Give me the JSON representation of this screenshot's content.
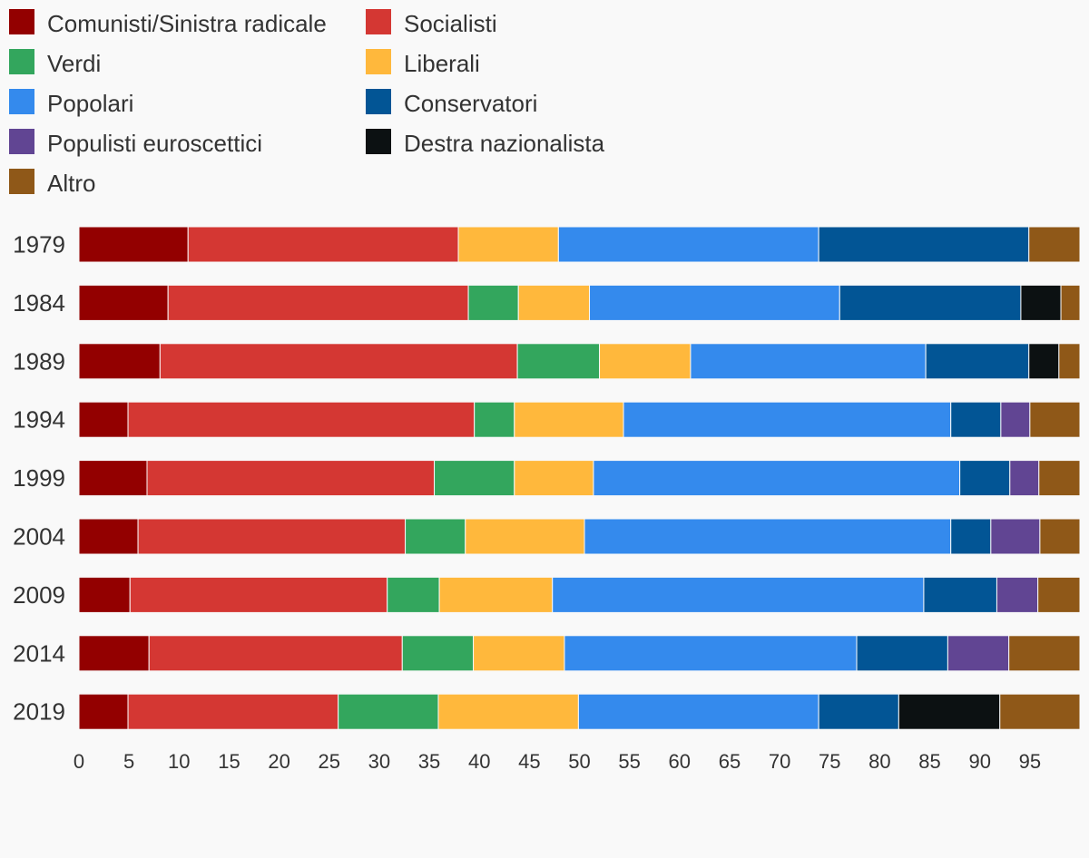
{
  "chart_data": {
    "type": "bar",
    "orientation": "horizontal",
    "stacked": true,
    "categories": [
      "1979",
      "1984",
      "1989",
      "1994",
      "1999",
      "2004",
      "2009",
      "2014",
      "2019"
    ],
    "series": [
      {
        "name": "Comunisti/Sinistra radicale",
        "color": "#930000",
        "values": [
          10.9,
          8.9,
          8.1,
          4.9,
          6.8,
          5.9,
          5.1,
          7.0,
          4.9
        ]
      },
      {
        "name": "Socialisti",
        "color": "#d43733",
        "values": [
          27.0,
          30.0,
          35.7,
          34.6,
          28.7,
          26.7,
          25.7,
          25.3,
          21.0
        ]
      },
      {
        "name": "Verdi",
        "color": "#33a65d",
        "values": [
          0,
          5.0,
          8.2,
          4.0,
          8.0,
          6.0,
          5.2,
          7.1,
          10.0
        ]
      },
      {
        "name": "Liberali",
        "color": "#ffb83c",
        "values": [
          10.0,
          7.1,
          9.1,
          10.9,
          7.9,
          11.9,
          11.3,
          9.1,
          14.0
        ]
      },
      {
        "name": "Popolari",
        "color": "#348aed",
        "values": [
          26.0,
          25.0,
          23.5,
          32.7,
          36.6,
          36.6,
          37.1,
          29.2,
          24.0
        ]
      },
      {
        "name": "Conservatori",
        "color": "#025595",
        "values": [
          21.0,
          18.1,
          10.3,
          5.0,
          5.0,
          4.0,
          7.3,
          9.1,
          8.0
        ]
      },
      {
        "name": "Populisti euroscettici",
        "color": "#614593",
        "values": [
          0,
          0,
          0,
          2.9,
          2.9,
          4.9,
          4.1,
          6.1,
          0
        ]
      },
      {
        "name": "Destra nazionalista",
        "color": "#0c1112",
        "values": [
          0,
          4.0,
          3.0,
          0,
          0,
          0,
          0,
          0,
          10.1
        ]
      },
      {
        "name": "Altro",
        "color": "#8f5818",
        "values": [
          5.1,
          1.9,
          2.1,
          5.0,
          4.1,
          4.0,
          4.2,
          7.1,
          8.0
        ]
      }
    ],
    "xticks": [
      "0",
      "5",
      "10",
      "15",
      "20",
      "25",
      "30",
      "35",
      "40",
      "45",
      "50",
      "55",
      "60",
      "65",
      "70",
      "75",
      "80",
      "85",
      "90",
      "95"
    ],
    "xlim": [
      0,
      100
    ],
    "grid": false,
    "legend": "top-left"
  }
}
